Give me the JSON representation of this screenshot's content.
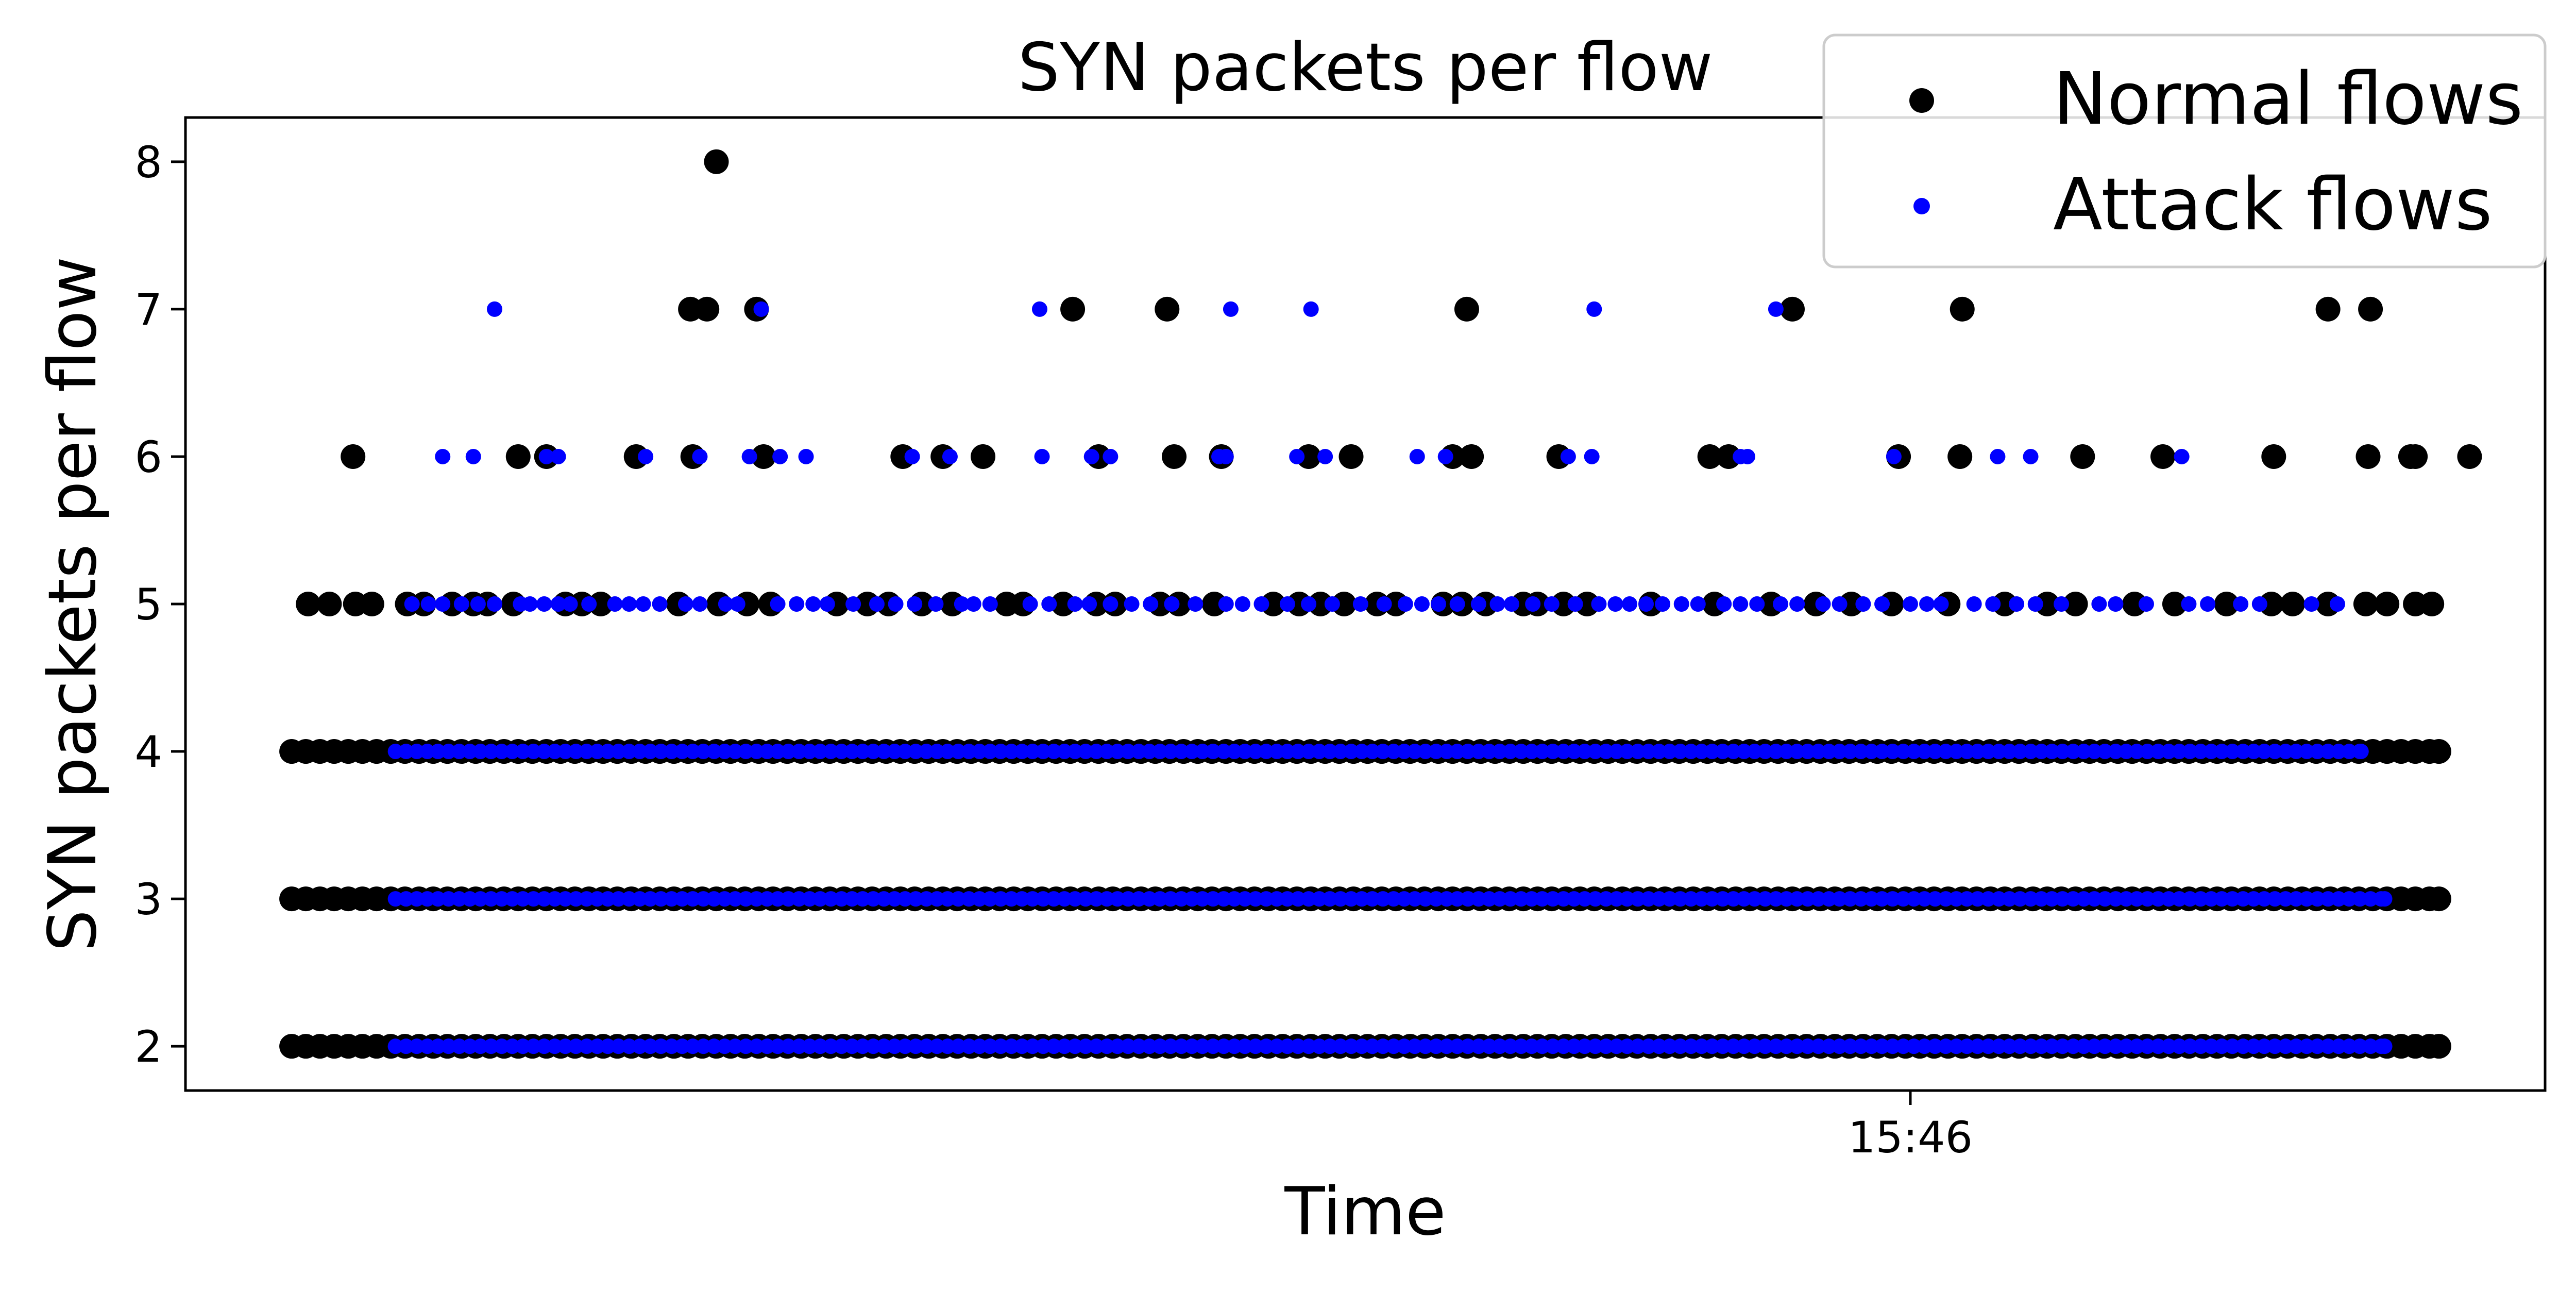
{
  "chart_data": {
    "type": "scatter",
    "title": "SYN packets per flow",
    "xlabel": "Time",
    "ylabel": "SYN packets per flow",
    "x_ticks": [
      "15:46"
    ],
    "y_ticks": [
      2,
      3,
      4,
      5,
      6,
      7,
      8
    ],
    "ylim": [
      1.7,
      8.3
    ],
    "grid": false,
    "legend_position": "top-right",
    "series": [
      {
        "name": "Normal flows",
        "color": "#000000",
        "marker": "circle-large",
        "points": [
          {
            "y": 2,
            "x_from": 0.045,
            "x_to": 0.955
          },
          {
            "y": 3,
            "x_from": 0.045,
            "x_to": 0.955
          },
          {
            "y": 4,
            "x_from": 0.045,
            "x_to": 0.955
          },
          {
            "y": 5,
            "x": [
              0.052,
              0.061,
              0.072,
              0.079,
              0.094,
              0.101,
              0.113,
              0.122,
              0.128,
              0.139,
              0.161,
              0.168,
              0.176,
              0.209,
              0.226,
              0.238,
              0.248,
              0.276,
              0.289,
              0.298,
              0.312,
              0.325,
              0.348,
              0.355,
              0.372,
              0.386,
              0.394,
              0.413,
              0.421,
              0.436,
              0.461,
              0.472,
              0.481,
              0.491,
              0.505,
              0.513,
              0.533,
              0.541,
              0.551,
              0.567,
              0.573,
              0.584,
              0.594,
              0.621,
              0.648,
              0.672,
              0.691,
              0.706,
              0.723,
              0.747,
              0.771,
              0.789,
              0.801,
              0.826,
              0.843,
              0.865,
              0.884,
              0.893,
              0.908,
              0.924,
              0.933,
              0.945,
              0.952
            ]
          },
          {
            "y": 6,
            "x": [
              0.071,
              0.141,
              0.153,
              0.191,
              0.215,
              0.245,
              0.304,
              0.321,
              0.338,
              0.387,
              0.419,
              0.439,
              0.476,
              0.494,
              0.537,
              0.545,
              0.582,
              0.646,
              0.654,
              0.726,
              0.752,
              0.804,
              0.838,
              0.885,
              0.925,
              0.945,
              0.968,
              0.943
            ]
          },
          {
            "y": 7,
            "x": [
              0.214,
              0.221,
              0.242,
              0.376,
              0.416,
              0.543,
              0.681,
              0.753,
              0.908,
              0.926
            ]
          },
          {
            "y": 8,
            "x": [
              0.225
            ]
          }
        ]
      },
      {
        "name": "Attack flows",
        "color": "#0000ff",
        "marker": "circle-small",
        "points": [
          {
            "y": 2,
            "x_from": 0.089,
            "x_to": 0.932
          },
          {
            "y": 3,
            "x_from": 0.089,
            "x_to": 0.932
          },
          {
            "y": 4,
            "x_from": 0.089,
            "x_to": 0.922
          },
          {
            "y": 5,
            "x": [
              0.096,
              0.103,
              0.109,
              0.117,
              0.124,
              0.131,
              0.142,
              0.146,
              0.152,
              0.158,
              0.163,
              0.171,
              0.182,
              0.188,
              0.194,
              0.201,
              0.212,
              0.218,
              0.229,
              0.234,
              0.251,
              0.259,
              0.266,
              0.272,
              0.283,
              0.293,
              0.301,
              0.309,
              0.318,
              0.329,
              0.334,
              0.341,
              0.358,
              0.366,
              0.377,
              0.383,
              0.392,
              0.401,
              0.409,
              0.418,
              0.428,
              0.441,
              0.448,
              0.456,
              0.467,
              0.476,
              0.486,
              0.498,
              0.508,
              0.517,
              0.524,
              0.531,
              0.539,
              0.548,
              0.556,
              0.562,
              0.571,
              0.579,
              0.589,
              0.599,
              0.606,
              0.612,
              0.619,
              0.626,
              0.634,
              0.641,
              0.652,
              0.659,
              0.666,
              0.676,
              0.683,
              0.694,
              0.701,
              0.711,
              0.719,
              0.731,
              0.738,
              0.744,
              0.758,
              0.766,
              0.776,
              0.784,
              0.795,
              0.811,
              0.818,
              0.831,
              0.849,
              0.857,
              0.871,
              0.879,
              0.901,
              0.912
            ]
          },
          {
            "y": 6,
            "x": [
              0.109,
              0.122,
              0.153,
              0.158,
              0.195,
              0.218,
              0.239,
              0.252,
              0.263,
              0.308,
              0.324,
              0.363,
              0.384,
              0.392,
              0.438,
              0.441,
              0.471,
              0.483,
              0.522,
              0.534,
              0.586,
              0.596,
              0.659,
              0.662,
              0.724,
              0.768,
              0.782,
              0.846
            ]
          },
          {
            "y": 7,
            "x": [
              0.131,
              0.244,
              0.362,
              0.443,
              0.477,
              0.597,
              0.674
            ]
          }
        ]
      }
    ]
  }
}
